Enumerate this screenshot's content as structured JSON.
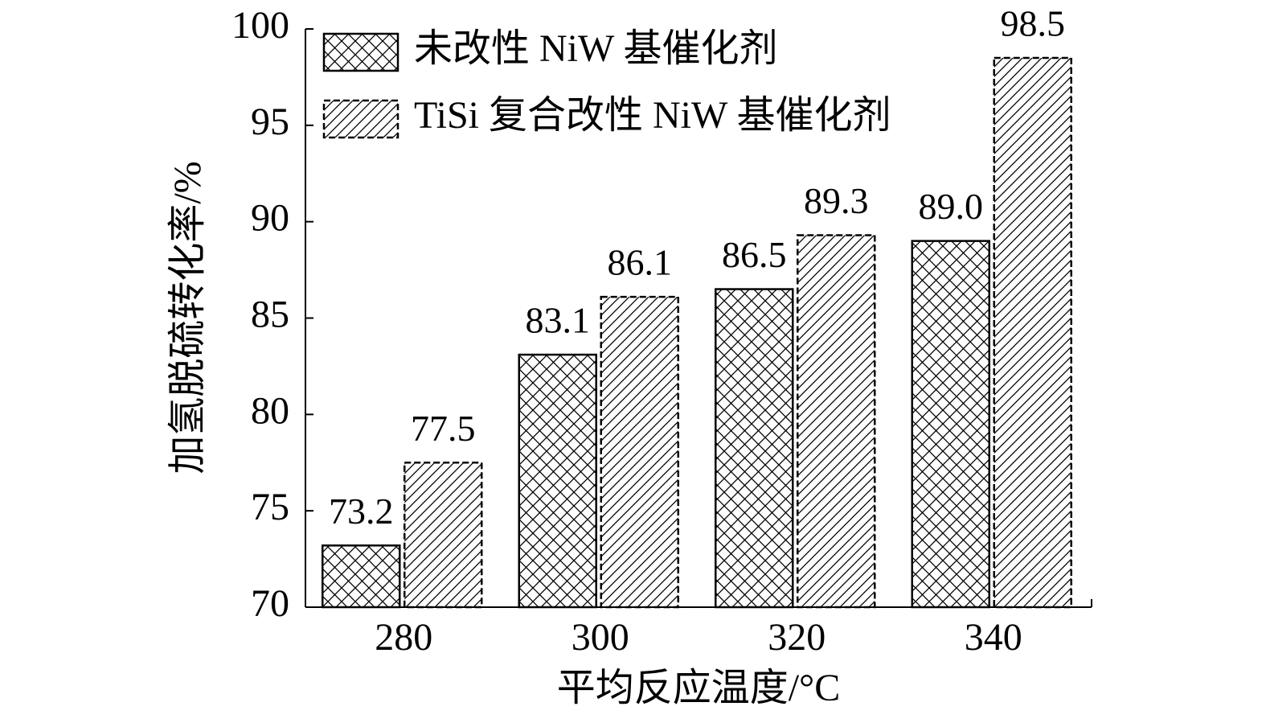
{
  "chart_data": {
    "type": "bar",
    "x_label": "平均反应温度/°C",
    "y_label": "加氢脱硫转化率/%",
    "categories": [
      "280",
      "300",
      "320",
      "340"
    ],
    "series": [
      {
        "name": "未改性 NiW 基催化剂",
        "color": "#000000",
        "hatch": "cross",
        "dashed": false,
        "values": [
          73.2,
          83.1,
          86.5,
          89.0
        ],
        "value_labels": [
          "73.2",
          "83.1",
          "86.5",
          "89.0"
        ]
      },
      {
        "name": "TiSi 复合改性 NiW 基催化剂",
        "color": "#000000",
        "hatch": "diagonal",
        "dashed": true,
        "values": [
          77.5,
          86.1,
          89.3,
          98.5
        ],
        "value_labels": [
          "77.5",
          "86.1",
          "89.3",
          "98.5"
        ]
      }
    ],
    "ylim": [
      70,
      100
    ],
    "yticks": [
      70,
      75,
      80,
      85,
      90,
      95,
      100
    ],
    "grid": false
  }
}
